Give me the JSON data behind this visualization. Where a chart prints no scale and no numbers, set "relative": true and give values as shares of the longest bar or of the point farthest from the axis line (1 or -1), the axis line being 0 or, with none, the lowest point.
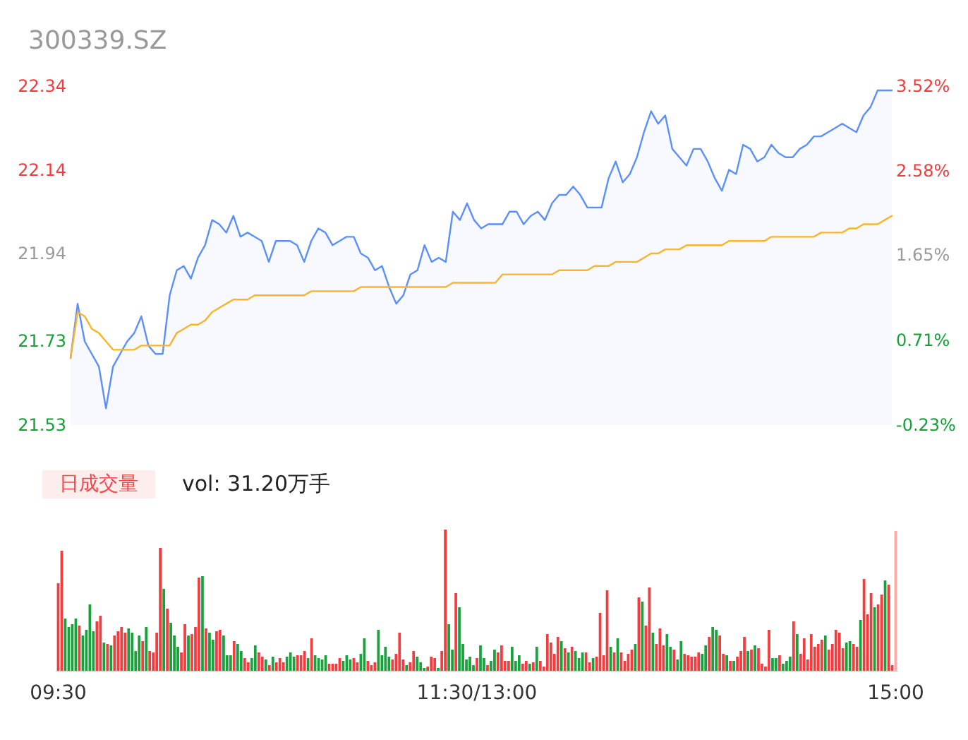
{
  "chart_data": [
    {
      "type": "line",
      "title": "300339.SZ",
      "marker": "none",
      "categories": [
        null,
        null,
        null,
        null,
        null,
        null,
        null,
        null,
        null,
        null,
        null,
        null,
        null,
        null,
        null,
        null,
        null,
        null,
        null,
        null,
        null,
        null,
        null,
        null,
        null,
        null,
        null,
        null,
        null,
        null,
        null,
        null,
        null,
        null,
        null,
        null,
        null,
        null,
        null,
        null,
        null,
        null,
        null,
        null,
        null,
        null,
        null,
        null,
        null,
        null,
        null,
        null,
        null,
        null,
        null,
        null,
        null,
        null,
        null,
        null,
        null,
        null,
        null,
        null,
        null,
        null,
        null,
        null,
        null,
        null,
        null,
        null,
        null,
        null,
        null,
        null,
        null,
        null,
        null,
        null,
        null,
        null,
        null,
        null,
        null,
        null,
        null,
        null,
        null,
        null,
        null,
        null,
        null,
        null,
        null,
        null,
        null,
        null,
        null,
        null,
        null,
        null,
        null,
        null,
        null,
        null,
        null,
        null,
        null,
        null,
        null,
        null,
        null,
        null,
        null,
        null,
        null
      ],
      "ylim": [
        21.53,
        22.34
      ],
      "yticks": [
        21.53,
        21.73,
        21.94,
        22.14,
        22.34
      ],
      "y2lim": [
        -0.23,
        3.52
      ],
      "y2ticks": [
        {
          "value": -0.23,
          "label": "-0.23%"
        },
        {
          "value": 0.71,
          "label": "0.71%"
        },
        {
          "value": 1.65,
          "label": "1.65%"
        },
        {
          "value": 2.58,
          "label": "2.58%"
        },
        {
          "value": 3.52,
          "label": "3.52%"
        }
      ],
      "series": [
        {
          "type": "area",
          "color": "#5b8ff9",
          "values": [
            21.69,
            21.82,
            21.73,
            21.7,
            21.67,
            21.57,
            21.67,
            21.7,
            21.73,
            21.75,
            21.79,
            21.72,
            21.7,
            21.7,
            21.84,
            21.9,
            21.91,
            21.88,
            21.93,
            21.96,
            22.02,
            22.01,
            21.99,
            22.03,
            21.98,
            21.99,
            21.98,
            21.97,
            21.92,
            21.97,
            21.97,
            21.97,
            21.96,
            21.92,
            21.97,
            22.0,
            21.99,
            21.96,
            21.97,
            21.98,
            21.98,
            21.94,
            21.93,
            21.9,
            21.91,
            21.86,
            21.82,
            21.84,
            21.89,
            21.9,
            21.96,
            21.92,
            21.93,
            21.92,
            22.04,
            22.02,
            22.06,
            22.02,
            22.0,
            22.01,
            22.01,
            22.01,
            22.04,
            22.04,
            22.01,
            22.03,
            22.04,
            22.02,
            22.06,
            22.08,
            22.08,
            22.1,
            22.08,
            22.05,
            22.05,
            22.05,
            22.12,
            22.16,
            22.11,
            22.13,
            22.17,
            22.23,
            22.28,
            22.25,
            22.27,
            22.19,
            22.17,
            22.15,
            22.19,
            22.19,
            22.16,
            22.12,
            22.09,
            22.14,
            22.13,
            22.2,
            22.19,
            22.16,
            22.17,
            22.2,
            22.18,
            22.17,
            22.17,
            22.19,
            22.2,
            22.22,
            22.22,
            22.23,
            22.24,
            22.25,
            22.24,
            22.23,
            22.27,
            22.29,
            22.33,
            22.33,
            22.33
          ]
        },
        {
          "type": "line",
          "color": "#f7b52c",
          "values": [
            21.69,
            21.8,
            21.79,
            21.76,
            21.75,
            21.73,
            21.71,
            21.71,
            21.71,
            21.71,
            21.72,
            21.72,
            21.72,
            21.72,
            21.72,
            21.75,
            21.76,
            21.77,
            21.77,
            21.78,
            21.8,
            21.81,
            21.82,
            21.83,
            21.83,
            21.83,
            21.84,
            21.84,
            21.84,
            21.84,
            21.84,
            21.84,
            21.84,
            21.84,
            21.85,
            21.85,
            21.85,
            21.85,
            21.85,
            21.85,
            21.85,
            21.86,
            21.86,
            21.86,
            21.86,
            21.86,
            21.86,
            21.86,
            21.86,
            21.86,
            21.86,
            21.86,
            21.86,
            21.86,
            21.87,
            21.87,
            21.87,
            21.87,
            21.87,
            21.87,
            21.87,
            21.89,
            21.89,
            21.89,
            21.89,
            21.89,
            21.89,
            21.89,
            21.89,
            21.9,
            21.9,
            21.9,
            21.9,
            21.9,
            21.91,
            21.91,
            21.91,
            21.92,
            21.92,
            21.92,
            21.92,
            21.93,
            21.94,
            21.94,
            21.95,
            21.95,
            21.95,
            21.96,
            21.96,
            21.96,
            21.96,
            21.96,
            21.96,
            21.97,
            21.97,
            21.97,
            21.97,
            21.97,
            21.97,
            21.98,
            21.98,
            21.98,
            21.98,
            21.98,
            21.98,
            21.98,
            21.99,
            21.99,
            21.99,
            21.99,
            22.0,
            22.0,
            22.01,
            22.01,
            22.01,
            22.02,
            22.03
          ]
        }
      ]
    },
    {
      "type": "bar",
      "title": "日成交量",
      "subtitle": "vol: 31.20万手",
      "relative": true,
      "categories": [
        "09:30",
        null,
        null,
        null,
        null,
        null,
        null,
        null,
        null,
        null,
        null,
        null,
        null,
        null,
        null,
        null,
        null,
        null,
        null,
        null,
        null,
        null,
        null,
        null,
        null,
        null,
        null,
        null,
        null,
        null,
        null,
        null,
        null,
        null,
        null,
        null,
        null,
        null,
        null,
        null,
        null,
        null,
        null,
        null,
        null,
        null,
        null,
        null,
        null,
        null,
        null,
        null,
        null,
        null,
        null,
        null,
        null,
        null,
        null,
        null,
        null,
        null,
        null,
        null,
        null,
        null,
        null,
        null,
        null,
        null,
        null,
        null,
        null,
        null,
        null,
        null,
        null,
        null,
        null,
        null,
        null,
        null,
        null,
        null,
        null,
        null,
        null,
        null,
        null,
        null,
        null,
        null,
        null,
        null,
        null,
        null,
        null,
        null,
        null,
        null,
        null,
        null,
        null,
        null,
        null,
        null,
        null,
        null,
        null,
        null,
        null,
        null,
        null,
        null,
        null,
        null,
        null,
        null,
        null,
        "11:30/13:00",
        null,
        null,
        null,
        null,
        null,
        null,
        null,
        null,
        null,
        null,
        null,
        null,
        null,
        null,
        null,
        null,
        null,
        null,
        null,
        null,
        null,
        null,
        null,
        null,
        null,
        null,
        null,
        null,
        null,
        null,
        null,
        null,
        null,
        null,
        null,
        null,
        null,
        null,
        null,
        null,
        null,
        null,
        null,
        null,
        null,
        null,
        null,
        null,
        null,
        null,
        null,
        null,
        null,
        null,
        null,
        null,
        null,
        null,
        null,
        null,
        null,
        null,
        null,
        null,
        null,
        null,
        null,
        null,
        null,
        null,
        null,
        null,
        null,
        null,
        null,
        null,
        null,
        null,
        null,
        null,
        null,
        null,
        null,
        null,
        null,
        null,
        null,
        null,
        null,
        null,
        null,
        null,
        null,
        null,
        null,
        null,
        null,
        null,
        null,
        null,
        null,
        null,
        null,
        null,
        null,
        null,
        null,
        null,
        null,
        null,
        null,
        null,
        null,
        null,
        null,
        null,
        null,
        null,
        "15:00"
      ],
      "values": [
        0.62,
        0.85,
        0.37,
        0.31,
        0.33,
        0.37,
        0.32,
        0.25,
        0.29,
        0.47,
        0.28,
        0.35,
        0.39,
        0.2,
        0.19,
        0.18,
        0.25,
        0.28,
        0.31,
        0.27,
        0.3,
        0.27,
        0.14,
        0.25,
        0.21,
        0.31,
        0.14,
        0.13,
        0.27,
        0.87,
        0.58,
        0.44,
        0.34,
        0.25,
        0.17,
        0.13,
        0.33,
        0.25,
        0.26,
        0.31,
        0.66,
        0.67,
        0.3,
        0.27,
        0.22,
        0.28,
        0.29,
        0.25,
        0.11,
        0.11,
        0.21,
        0.19,
        0.14,
        0.09,
        0.06,
        0.09,
        0.18,
        0.13,
        0.1,
        0.08,
        0.04,
        0.1,
        0.06,
        0.09,
        0.06,
        0.1,
        0.13,
        0.1,
        0.11,
        0.11,
        0.14,
        0.09,
        0.23,
        0.11,
        0.09,
        0.08,
        0.11,
        0.05,
        0.05,
        0.05,
        0.09,
        0.07,
        0.11,
        0.08,
        0.09,
        0.06,
        0.12,
        0.23,
        0.07,
        0.04,
        0.06,
        0.29,
        0.11,
        0.17,
        0.1,
        0.08,
        0.12,
        0.27,
        0.08,
        0.04,
        0.06,
        0.14,
        0.1,
        0.06,
        0.02,
        0.03,
        0.1,
        0.09,
        0.02,
        0.14,
        1,
        0.33,
        0.15,
        0.55,
        0.45,
        0.19,
        0.08,
        0.1,
        0.04,
        0.09,
        0.18,
        0.09,
        0.04,
        0.07,
        0.15,
        0.13,
        0.18,
        0.07,
        0.07,
        0.17,
        0.07,
        0.11,
        0.05,
        0.07,
        0.05,
        0.06,
        0.17,
        0.07,
        0.03,
        0.26,
        0.2,
        0.12,
        0.24,
        0.21,
        0.16,
        0.13,
        0.17,
        0.14,
        0.09,
        0.13,
        0.13,
        0.06,
        0.09,
        0.1,
        0.41,
        0.11,
        0.57,
        0.17,
        0.13,
        0.23,
        0.13,
        0.07,
        0.12,
        0.15,
        0.19,
        0.52,
        0.49,
        0.32,
        0.59,
        0.27,
        0.19,
        0.3,
        0.18,
        0.26,
        0.17,
        0.15,
        0.08,
        0.21,
        0.12,
        0.11,
        0.1,
        0.1,
        0.13,
        0.12,
        0.18,
        0.24,
        0.31,
        0.29,
        0.25,
        0.12,
        0.11,
        0.07,
        0.07,
        0.1,
        0.14,
        0.24,
        0.14,
        0.15,
        0.18,
        0.16,
        0.05,
        0.03,
        0.29,
        0.09,
        0.09,
        0.11,
        0.05,
        0.07,
        0.1,
        0.35,
        0.26,
        0.12,
        0.23,
        0.08,
        0.26,
        0.17,
        0.19,
        0.22,
        0.25,
        0.15,
        0.19,
        0.29,
        0.27,
        0.16,
        0.2,
        0.21,
        0.19,
        0.17,
        0.36,
        0.65,
        0.4,
        0.55,
        0.45,
        0.47,
        0.54,
        0.64,
        0.61,
        0.04,
        0.99
      ],
      "colors": [
        "#f43b3e",
        "#f43b3e",
        "#17a23b",
        "#17a23b",
        "#17a23b",
        "#17a23b",
        "#f43b3e",
        "#17a23b",
        "#17a23b",
        "#17a23b",
        "#17a23b",
        "#f43b3e",
        "#f43b3e",
        "#17a23b",
        "#f43b3e",
        "#17a23b",
        "#f43b3e",
        "#f43b3e",
        "#f43b3e",
        "#f43b3e",
        "#17a23b",
        "#17a23b",
        "#17a23b",
        "#17a23b",
        "#f43b3e",
        "#17a23b",
        "#f43b3e",
        "#f43b3e",
        "#f43b3e",
        "#f43b3e",
        "#17a23b",
        "#f43b3e",
        "#17a23b",
        "#17a23b",
        "#17a23b",
        "#f43b3e",
        "#f43b3e",
        "#17a23b",
        "#f43b3e",
        "#f43b3e",
        "#f43b3e",
        "#17a23b",
        "#f43b3e",
        "#17a23b",
        "#17a23b",
        "#f43b3e",
        "#f43b3e",
        "#17a23b",
        "#17a23b",
        "#17a23b",
        "#f43b3e",
        "#17a23b",
        "#17a23b",
        "#f43b3e",
        "#f43b3e",
        "#17a23b",
        "#17a23b",
        "#f43b3e",
        "#f43b3e",
        "#17a23b",
        "#f43b3e",
        "#17a23b",
        "#f43b3e",
        "#f43b3e",
        "#f43b3e",
        "#17a23b",
        "#17a23b",
        "#17a23b",
        "#f43b3e",
        "#f43b3e",
        "#f43b3e",
        "#17a23b",
        "#f43b3e",
        "#17a23b",
        "#17a23b",
        "#17a23b",
        "#17a23b",
        "#f43b3e",
        "#f43b3e",
        "#f43b3e",
        "#f43b3e",
        "#17a23b",
        "#17a23b",
        "#17a23b",
        "#f43b3e",
        "#f43b3e",
        "#17a23b",
        "#17a23b",
        "#f43b3e",
        "#f43b3e",
        "#f43b3e",
        "#17a23b",
        "#17a23b",
        "#17a23b",
        "#17a23b",
        "#f43b3e",
        "#f43b3e",
        "#f43b3e",
        "#f43b3e",
        "#17a23b",
        "#f43b3e",
        "#f43b3e",
        "#17a23b",
        "#17a23b",
        "#17a23b",
        "#f43b3e",
        "#f43b3e",
        "#f43b3e",
        "#17a23b",
        "#f43b3e",
        "#f43b3e",
        "#17a23b",
        "#17a23b",
        "#f43b3e",
        "#17a23b",
        "#17a23b",
        "#17a23b",
        "#17a23b",
        "#17a23b",
        "#f43b3e",
        "#17a23b",
        "#17a23b",
        "#f43b3e",
        "#17a23b",
        "#17a23b",
        "#f43b3e",
        "#f43b3e",
        "#f43b3e",
        "#f43b3e",
        "#17a23b",
        "#17a23b",
        "#17a23b",
        "#f43b3e",
        "#f43b3e",
        "#17a23b",
        "#f43b3e",
        "#17a23b",
        "#f43b3e",
        "#f43b3e",
        "#f43b3e",
        "#f43b3e",
        "#f43b3e",
        "#f43b3e",
        "#17a23b",
        "#f43b3e",
        "#17a23b",
        "#f43b3e",
        "#17a23b",
        "#17a23b",
        "#17a23b",
        "#f43b3e",
        "#f43b3e",
        "#17a23b",
        "#f43b3e",
        "#f43b3e",
        "#f43b3e",
        "#f43b3e",
        "#17a23b",
        "#f43b3e",
        "#17a23b",
        "#f43b3e",
        "#f43b3e",
        "#f43b3e",
        "#f43b3e",
        "#17a23b",
        "#f43b3e",
        "#17a23b",
        "#f43b3e",
        "#f43b3e",
        "#17a23b",
        "#f43b3e",
        "#f43b3e",
        "#f43b3e",
        "#17a23b",
        "#17a23b",
        "#f43b3e",
        "#17a23b",
        "#17a23b",
        "#f43b3e",
        "#f43b3e",
        "#f43b3e",
        "#f43b3e",
        "#f43b3e",
        "#17a23b",
        "#17a23b",
        "#f43b3e",
        "#17a23b",
        "#17a23b",
        "#f43b3e",
        "#f43b3e",
        "#17a23b",
        "#f43b3e",
        "#17a23b",
        "#f43b3e",
        "#f43b3e",
        "#f43b3e",
        "#17a23b",
        "#f43b3e",
        "#17a23b",
        "#f43b3e",
        "#f43b3e",
        "#f43b3e",
        "#f43b3e",
        "#17a23b",
        "#17a23b",
        "#f43b3e",
        "#17a23b",
        "#17a23b",
        "#17a23b",
        "#f43b3e",
        "#17a23b",
        "#f43b3e",
        "#f43b3e",
        "#f43b3e",
        "#f43b3e",
        "#f43b3e",
        "#f43b3e",
        "#f43b3e",
        "#17a23b",
        "#f43b3e",
        "#f43b3e",
        "#f43b3e",
        "#f43b3e",
        "#f43b3e",
        "#17a23b",
        "#17a23b",
        "#f43b3e",
        "#f43b3e",
        "#17a23b",
        "#f43b3e",
        "#f43b3e",
        "#f43b3e",
        "#17a23b",
        "#f43b3e",
        "#f43b3e",
        "#17a23b",
        "#f43b3e",
        "#f43b3e",
        "#ffa9a9"
      ]
    }
  ]
}
